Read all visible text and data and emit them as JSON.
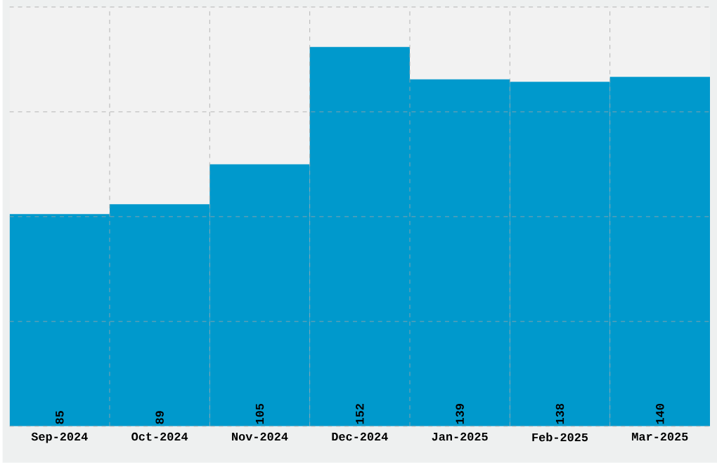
{
  "chart_data": {
    "type": "bar",
    "categories": [
      "Sep-2024",
      "Oct-2024",
      "Nov-2024",
      "Dec-2024",
      "Jan-2025",
      "Feb-2025",
      "Mar-2025"
    ],
    "values": [
      85,
      89,
      105,
      152,
      139,
      138,
      140
    ],
    "color": "#0099cc",
    "ylim": [
      0,
      168
    ],
    "yticks": [
      {
        "value": 0,
        "label": null
      },
      {
        "value": 42,
        "label": null
      },
      {
        "value": 84,
        "label": null
      },
      {
        "value": 126,
        "label": null
      },
      {
        "value": 168,
        "label": null
      }
    ],
    "tick_labels": "x",
    "grid": true,
    "data_labels": true
  }
}
